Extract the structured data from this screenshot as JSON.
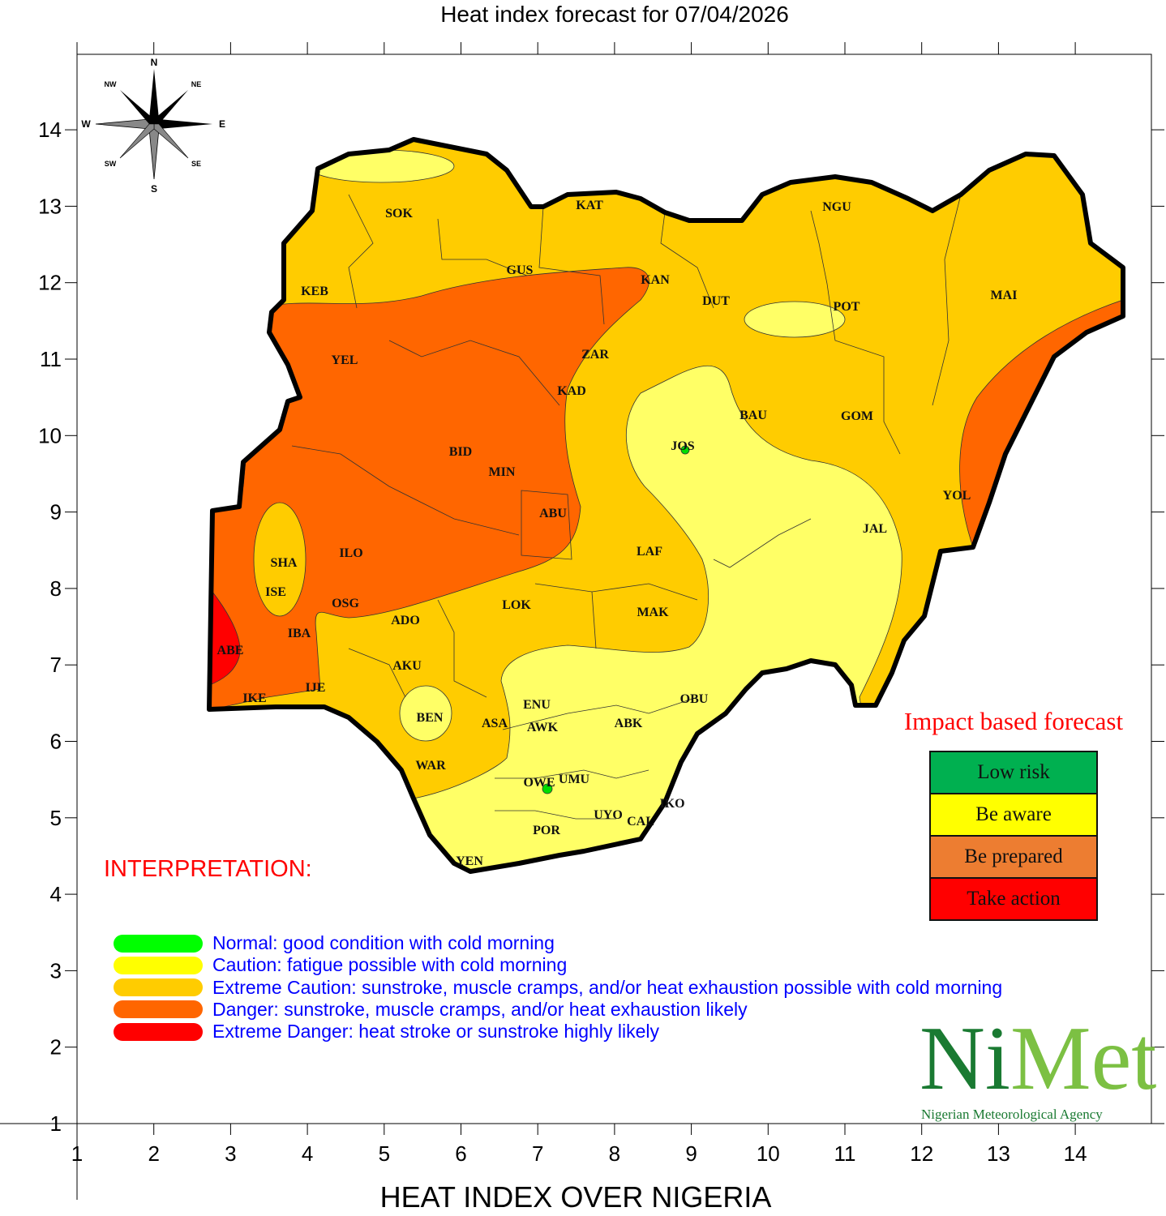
{
  "title": "Heat index forecast for 07/04/2026",
  "xlabel": "HEAT INDEX OVER NIGERIA",
  "axes": {
    "x_ticks": [
      1,
      2,
      3,
      4,
      5,
      6,
      7,
      8,
      9,
      10,
      11,
      12,
      13,
      14
    ],
    "y_ticks": [
      1,
      2,
      3,
      4,
      5,
      6,
      7,
      8,
      9,
      10,
      11,
      12,
      13,
      14
    ]
  },
  "compass": {
    "n": "N",
    "s": "S",
    "e": "E",
    "w": "W",
    "ne": "NE",
    "nw": "NW",
    "se": "SE",
    "sw": "SW"
  },
  "states": [
    "SOK",
    "KAT",
    "NGU",
    "KEB",
    "GUS",
    "KAN",
    "DUT",
    "POT",
    "MAI",
    "YEL",
    "ZAR",
    "KAD",
    "BAU",
    "GOM",
    "BID",
    "MIN",
    "JOS",
    "ABU",
    "YOL",
    "JAL",
    "SHA",
    "ILO",
    "LAF",
    "ISE",
    "OSG",
    "LOK",
    "MAK",
    "ADO",
    "IBA",
    "ABE",
    "AKU",
    "IJE",
    "IKE",
    "ENU",
    "OBU",
    "BEN",
    "ASA",
    "AWK",
    "ABK",
    "WAR",
    "OWE",
    "UMU",
    "IKO",
    "UYO",
    "CAL",
    "POR",
    "YEN"
  ],
  "interpretation": {
    "heading": "INTERPRETATION:",
    "items": [
      {
        "color": "#00ff00",
        "text": "Normal: good condition with cold morning"
      },
      {
        "color": "#ffff00",
        "text": "Caution: fatigue possible  with cold morning"
      },
      {
        "color": "#ffcc00",
        "text": "Extreme Caution: sunstroke, muscle cramps, and/or heat exhaustion possible  with cold morning"
      },
      {
        "color": "#ff6600",
        "text": "Danger: sunstroke, muscle cramps, and/or heat exhaustion likely"
      },
      {
        "color": "#ff0000",
        "text": "Extreme Danger: heat stroke or sunstroke highly likely"
      }
    ]
  },
  "impact": {
    "title": "Impact based forecast",
    "levels": [
      {
        "label": "Low risk",
        "color": "#00b050"
      },
      {
        "label": "Be aware",
        "color": "#ffff00"
      },
      {
        "label": "Be prepared",
        "color": "#ed7d31"
      },
      {
        "label": "Take action",
        "color": "#ff0000"
      }
    ]
  },
  "logo": {
    "ni": "Ni",
    "met": "Met",
    "agency": "Nigerian Meteorological Agency"
  },
  "zone_colors": {
    "normal": "#00ff00",
    "caution": "#ffff66",
    "extreme_caution": "#ffcc00",
    "danger": "#ff6600",
    "extreme_danger": "#ff0000"
  }
}
